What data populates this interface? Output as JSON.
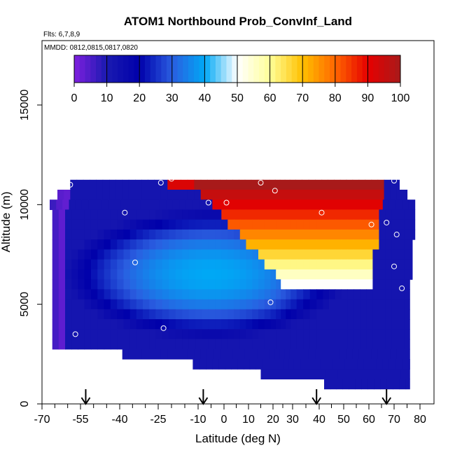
{
  "chart_data": {
    "type": "heatmap",
    "title": "ATOM1 Northbound Prob_ConvInf_Land",
    "subtitle_flights": "Flts: 6,7,8,9",
    "subtitle_dates": "MMDD: 0812,0815,0817,0820",
    "xlabel": "Latitude (deg N)",
    "ylabel": "Altitude (m)",
    "xlim": [
      -70,
      80
    ],
    "ylim": [
      0,
      17000
    ],
    "x_ticks": [
      -70,
      -55,
      -40,
      -25,
      -10,
      0,
      10,
      20,
      30,
      40,
      50,
      60,
      70,
      80
    ],
    "x_tick_labels": [
      "-70",
      "-55",
      "-40",
      "-25",
      "-10",
      "0",
      "10",
      "20",
      "30",
      "40",
      "50",
      "60",
      "70",
      "80"
    ],
    "y_ticks": [
      0,
      5000,
      10000,
      15000
    ],
    "y_tick_labels": [
      "0",
      "5000",
      "10000",
      "15000"
    ],
    "colorbar": {
      "min": 0,
      "max": 100,
      "ticks": [
        0,
        10,
        20,
        30,
        40,
        50,
        60,
        70,
        80,
        90,
        100
      ],
      "tick_labels": [
        "0",
        "10",
        "20",
        "30",
        "40",
        "50",
        "60",
        "70",
        "80",
        "90",
        "100"
      ],
      "colors": [
        "#7f1fdf",
        "#1a1ab0",
        "#0000aa",
        "#2a5de0",
        "#00a8f5",
        "#ffffff",
        "#ffff99",
        "#ffc000",
        "#ff6600",
        "#e60000",
        "#a81a1a"
      ]
    },
    "curtain_rows": [
      {
        "alt": 11000,
        "lat_min": -59,
        "lat_max": 72
      },
      {
        "alt": 10500,
        "lat_min": -64,
        "lat_max": 75
      },
      {
        "alt": 10000,
        "lat_min": -67,
        "lat_max": 78
      },
      {
        "alt": 9500,
        "lat_min": -66,
        "lat_max": 78
      },
      {
        "alt": 9000,
        "lat_min": -66,
        "lat_max": 78
      },
      {
        "alt": 8500,
        "lat_min": -66,
        "lat_max": 78
      },
      {
        "alt": 8000,
        "lat_min": -66,
        "lat_max": 77
      },
      {
        "alt": 7500,
        "lat_min": -66,
        "lat_max": 77
      },
      {
        "alt": 7000,
        "lat_min": -66,
        "lat_max": 77
      },
      {
        "alt": 6500,
        "lat_min": -66,
        "lat_max": 77
      },
      {
        "alt": 6000,
        "lat_min": -66,
        "lat_max": 76
      },
      {
        "alt": 5500,
        "lat_min": -66,
        "lat_max": 76
      },
      {
        "alt": 5000,
        "lat_min": -66,
        "lat_max": 76
      },
      {
        "alt": 4500,
        "lat_min": -66,
        "lat_max": 76
      },
      {
        "alt": 4000,
        "lat_min": -66,
        "lat_max": 76
      },
      {
        "alt": 3500,
        "lat_min": -66,
        "lat_max": 76
      },
      {
        "alt": 3000,
        "lat_min": -66,
        "lat_max": 76
      },
      {
        "alt": 2500,
        "lat_min": -39,
        "lat_max": 76
      },
      {
        "alt": 2000,
        "lat_min": -12,
        "lat_max": 76
      },
      {
        "alt": 1500,
        "lat_min": 15,
        "lat_max": 76
      },
      {
        "alt": 1000,
        "lat_min": 42,
        "lat_max": 76
      }
    ],
    "profile_points": [
      {
        "lat": -59,
        "alt": 11000
      },
      {
        "lat": -24,
        "alt": 11100
      },
      {
        "lat": -20,
        "alt": 11300
      },
      {
        "lat": -38,
        "alt": 9600
      },
      {
        "lat": -6,
        "alt": 10100
      },
      {
        "lat": 1,
        "alt": 10100
      },
      {
        "lat": 15,
        "alt": 11100
      },
      {
        "lat": 21,
        "alt": 10700
      },
      {
        "lat": 41,
        "alt": 9600
      },
      {
        "lat": 61,
        "alt": 9000
      },
      {
        "lat": 67,
        "alt": 9100
      },
      {
        "lat": 70,
        "alt": 11200
      },
      {
        "lat": 71,
        "alt": 8500
      },
      {
        "lat": 70,
        "alt": 6900
      },
      {
        "lat": 73,
        "alt": 5800
      },
      {
        "lat": -34,
        "alt": 7100
      },
      {
        "lat": 19,
        "alt": 5100
      },
      {
        "lat": -23,
        "alt": 3800
      },
      {
        "lat": -57,
        "alt": 3500
      }
    ],
    "arrows": [
      -53,
      -8,
      39,
      67
    ]
  }
}
